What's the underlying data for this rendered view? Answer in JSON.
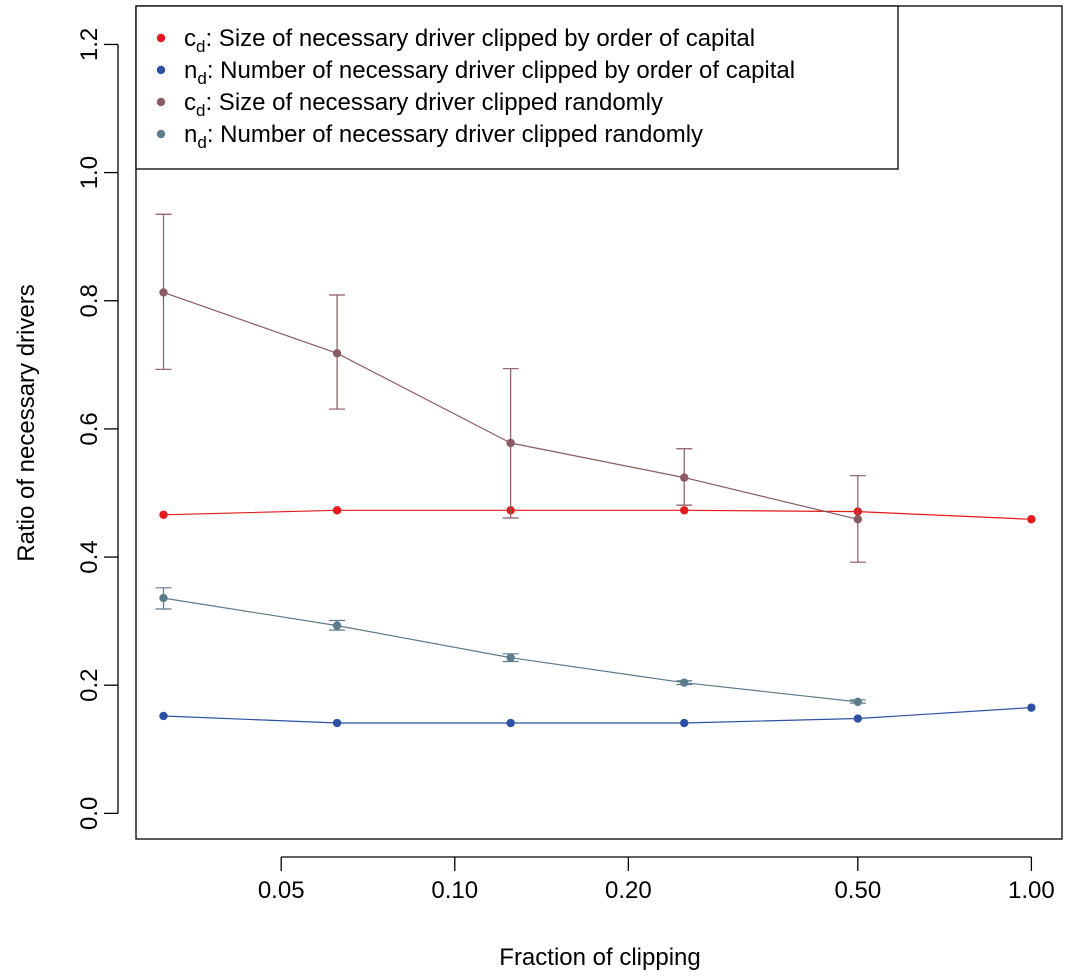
{
  "chart_data": {
    "type": "line",
    "xlabel": "Fraction of clipping",
    "ylabel": "Ratio of necessary drivers",
    "xscale": "log",
    "xlim": [
      0.028,
      1.13
    ],
    "ylim": [
      -0.04,
      1.26
    ],
    "x_ticks": [
      0.05,
      0.1,
      0.2,
      0.5,
      1.0
    ],
    "x_tick_labels": [
      "0.05",
      "0.10",
      "0.20",
      "0.50",
      "1.00"
    ],
    "y_ticks": [
      0.0,
      0.2,
      0.4,
      0.6,
      0.8,
      1.0,
      1.2
    ],
    "y_tick_labels": [
      "0.0",
      "0.2",
      "0.4",
      "0.6",
      "0.8",
      "1.0",
      "1.2"
    ],
    "legend_position": "top-left",
    "series": [
      {
        "legend_symbol": "c",
        "legend_subscript": "d",
        "legend_text": ": Size of necessary driver clipped by order of capital",
        "color": "#e41a1c",
        "x": [
          0.03125,
          0.0625,
          0.125,
          0.25,
          0.5,
          1.0
        ],
        "y": [
          0.466,
          0.473,
          0.473,
          0.473,
          0.471,
          0.459
        ],
        "error_low": null,
        "error_high": null
      },
      {
        "legend_symbol": "n",
        "legend_subscript": "d",
        "legend_text": ": Number of necessary driver clipped by order of capital",
        "color": "#2c50a3",
        "x": [
          0.03125,
          0.0625,
          0.125,
          0.25,
          0.5,
          1.0
        ],
        "y": [
          0.152,
          0.141,
          0.141,
          0.141,
          0.148,
          0.165
        ],
        "error_low": null,
        "error_high": null
      },
      {
        "legend_symbol": "c",
        "legend_subscript": "d",
        "legend_text": ": Size of necessary driver clipped randomly",
        "color": "#8b5a62",
        "x": [
          0.03125,
          0.0625,
          0.125,
          0.25,
          0.5
        ],
        "y": [
          0.813,
          0.718,
          0.578,
          0.524,
          0.459
        ],
        "error_low": [
          0.693,
          0.631,
          0.461,
          0.481,
          0.392
        ],
        "error_high": [
          0.935,
          0.809,
          0.694,
          0.569,
          0.527
        ]
      },
      {
        "legend_symbol": "n",
        "legend_subscript": "d",
        "legend_text": ": Number of necessary driver clipped randomly",
        "color": "#5e7b8c",
        "x": [
          0.03125,
          0.0625,
          0.125,
          0.25,
          0.5
        ],
        "y": [
          0.336,
          0.293,
          0.243,
          0.204,
          0.174
        ],
        "error_low": [
          0.319,
          0.286,
          0.237,
          0.201,
          0.172
        ],
        "error_high": [
          0.352,
          0.301,
          0.249,
          0.207,
          0.177
        ]
      }
    ]
  }
}
